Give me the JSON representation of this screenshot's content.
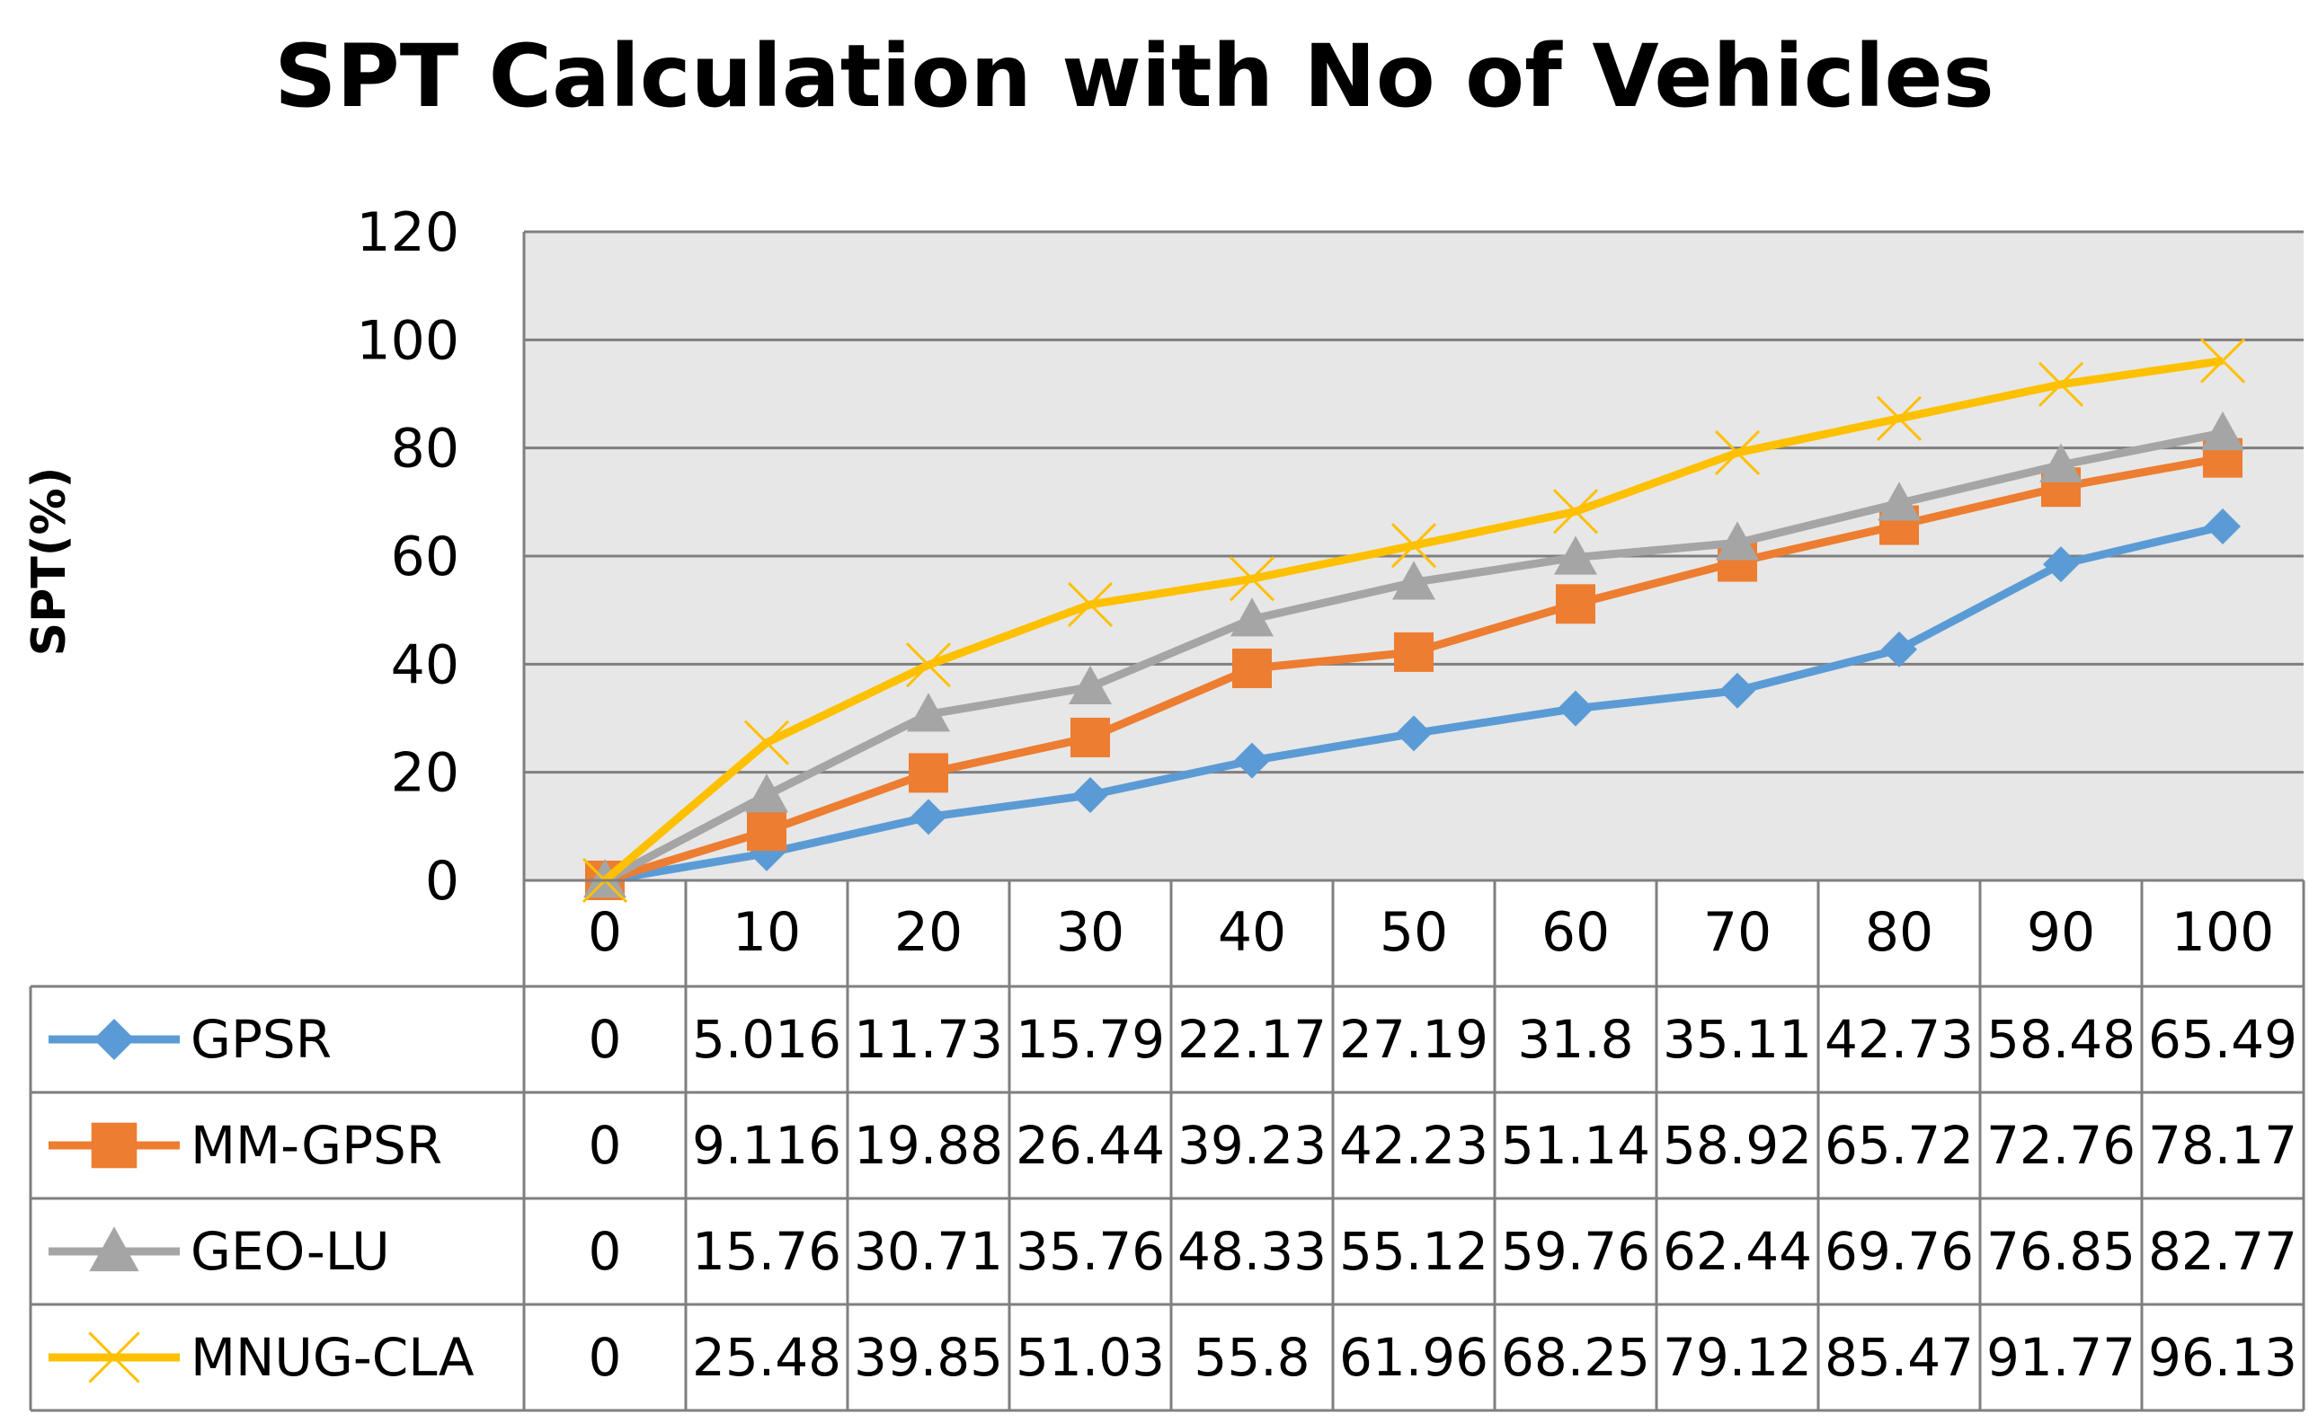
{
  "chart_data": {
    "type": "line",
    "title": "SPT Calculation with No of Vehicles",
    "xlabel": "",
    "ylabel": "SPT(%)",
    "ylim": [
      0,
      120
    ],
    "yticks": [
      "0",
      "20",
      "40",
      "60",
      "80",
      "100",
      "120"
    ],
    "categories": [
      "0",
      "10",
      "20",
      "30",
      "40",
      "50",
      "60",
      "70",
      "80",
      "90",
      "100"
    ],
    "legend_position": "data-table-left",
    "grid": true,
    "series": [
      {
        "name": "GPSR",
        "color": "#5b9bd5",
        "marker": "diamond",
        "values": [
          0,
          5.016,
          11.73,
          15.79,
          22.17,
          27.19,
          31.8,
          35.11,
          42.73,
          58.48,
          65.49
        ],
        "labels": [
          "0",
          "5.016",
          "11.73",
          "15.79",
          "22.17",
          "27.19",
          "31.8",
          "35.11",
          "42.73",
          "58.48",
          "65.49"
        ]
      },
      {
        "name": "MM-GPSR",
        "color": "#ed7d31",
        "marker": "square",
        "values": [
          0,
          9.116,
          19.88,
          26.44,
          39.23,
          42.23,
          51.14,
          58.92,
          65.72,
          72.76,
          78.17
        ],
        "labels": [
          "0",
          "9.116",
          "19.88",
          "26.44",
          "39.23",
          "42.23",
          "51.14",
          "58.92",
          "65.72",
          "72.76",
          "78.17"
        ]
      },
      {
        "name": "GEO-LU",
        "color": "#a5a5a5",
        "marker": "triangle",
        "values": [
          0,
          15.76,
          30.71,
          35.76,
          48.33,
          55.12,
          59.76,
          62.44,
          69.76,
          76.85,
          82.77
        ],
        "labels": [
          "0",
          "15.76",
          "30.71",
          "35.76",
          "48.33",
          "55.12",
          "59.76",
          "62.44",
          "69.76",
          "76.85",
          "82.77"
        ]
      },
      {
        "name": "MNUG-CLA",
        "color": "#ffc000",
        "marker": "x",
        "values": [
          0,
          25.48,
          39.85,
          51.03,
          55.8,
          61.96,
          68.25,
          79.12,
          85.47,
          91.77,
          96.13
        ],
        "labels": [
          "0",
          "25.48",
          "39.85",
          "51.03",
          "55.8",
          "61.96",
          "68.25",
          "79.12",
          "85.47",
          "91.77",
          "96.13"
        ]
      }
    ]
  }
}
